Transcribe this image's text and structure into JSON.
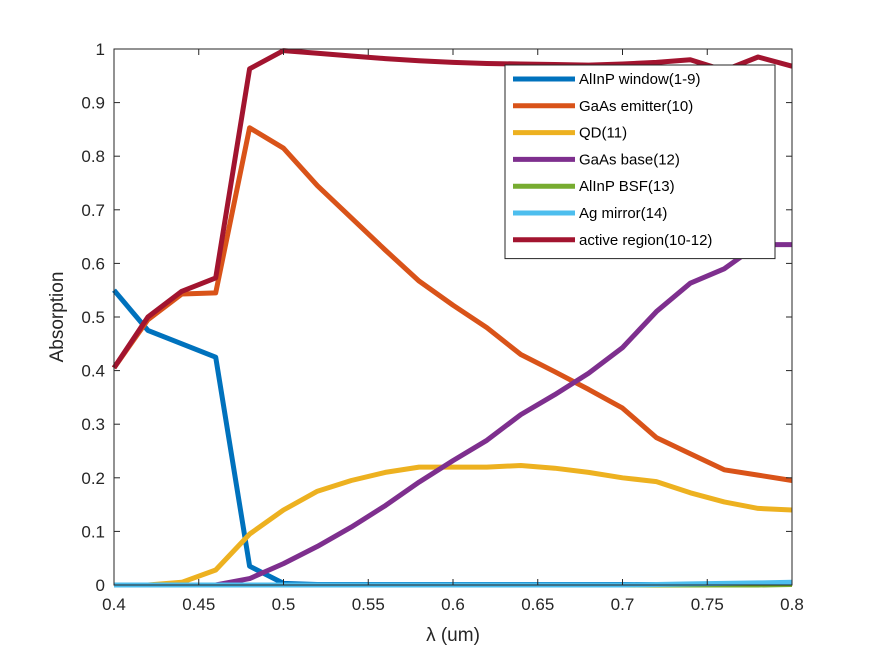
{
  "chart_data": {
    "type": "line",
    "xlabel": "λ (um)",
    "ylabel": "Absorption",
    "xlim": [
      0.4,
      0.8
    ],
    "ylim": [
      0,
      1
    ],
    "xticks": [
      "0.4",
      "0.45",
      "0.5",
      "0.55",
      "0.6",
      "0.65",
      "0.7",
      "0.75",
      "0.8"
    ],
    "yticks": [
      "0",
      "0.1",
      "0.2",
      "0.3",
      "0.4",
      "0.5",
      "0.6",
      "0.7",
      "0.8",
      "0.9",
      "1"
    ],
    "grid": false,
    "legend_position": "top-right",
    "x": [
      0.4,
      0.42,
      0.44,
      0.46,
      0.48,
      0.5,
      0.52,
      0.54,
      0.56,
      0.58,
      0.6,
      0.62,
      0.64,
      0.66,
      0.68,
      0.7,
      0.72,
      0.74,
      0.76,
      0.78,
      0.8
    ],
    "series": [
      {
        "name": "AlInP window(1-9)",
        "color": "#0072BD",
        "values": [
          0.55,
          0.475,
          0.45,
          0.425,
          0.035,
          0.003,
          0.001,
          0.001,
          0.001,
          0.001,
          0.001,
          0.001,
          0.001,
          0.001,
          0.001,
          0.001,
          0.001,
          0.001,
          0.001,
          0.001,
          0.001
        ]
      },
      {
        "name": "GaAs emitter(10)",
        "color": "#D95319",
        "values": [
          0.405,
          0.495,
          0.543,
          0.545,
          0.853,
          0.815,
          0.745,
          0.685,
          0.625,
          0.567,
          0.522,
          0.48,
          0.43,
          0.398,
          0.365,
          0.33,
          0.275,
          0.245,
          0.215,
          0.205,
          0.195
        ]
      },
      {
        "name": "QD(11)",
        "color": "#EDB120",
        "values": [
          0.0,
          0.0,
          0.005,
          0.028,
          0.095,
          0.14,
          0.175,
          0.195,
          0.21,
          0.22,
          0.22,
          0.22,
          0.223,
          0.218,
          0.21,
          0.2,
          0.193,
          0.172,
          0.155,
          0.143,
          0.14
        ]
      },
      {
        "name": "GaAs base(12)",
        "color": "#7E2F8E",
        "values": [
          0.0,
          0.0,
          0.0,
          0.0,
          0.012,
          0.04,
          0.072,
          0.108,
          0.148,
          0.192,
          0.232,
          0.27,
          0.318,
          0.355,
          0.395,
          0.443,
          0.51,
          0.563,
          0.59,
          0.635,
          0.635
        ]
      },
      {
        "name": "AlInP BSF(13)",
        "color": "#77AC30",
        "values": [
          0.0,
          0.0,
          0.0,
          0.0,
          0.0,
          0.0,
          0.0,
          0.0,
          0.0,
          0.0,
          0.0,
          0.0,
          0.0,
          0.0,
          0.0,
          0.0,
          0.0,
          0.0,
          0.0,
          0.0,
          0.001
        ]
      },
      {
        "name": "Ag mirror(14)",
        "color": "#4DBEEE",
        "values": [
          0.0,
          0.0,
          0.0,
          0.0,
          0.0,
          0.0,
          0.0,
          0.0,
          0.0,
          0.0,
          0.0,
          0.0,
          0.0,
          0.0,
          0.0,
          0.0,
          0.001,
          0.002,
          0.003,
          0.004,
          0.005
        ]
      },
      {
        "name": "active region(10-12)",
        "color": "#A2142F",
        "values": [
          0.405,
          0.5,
          0.548,
          0.573,
          0.963,
          0.997,
          0.992,
          0.987,
          0.982,
          0.978,
          0.975,
          0.973,
          0.972,
          0.971,
          0.97,
          0.972,
          0.975,
          0.98,
          0.96,
          0.985,
          0.968
        ]
      }
    ]
  }
}
